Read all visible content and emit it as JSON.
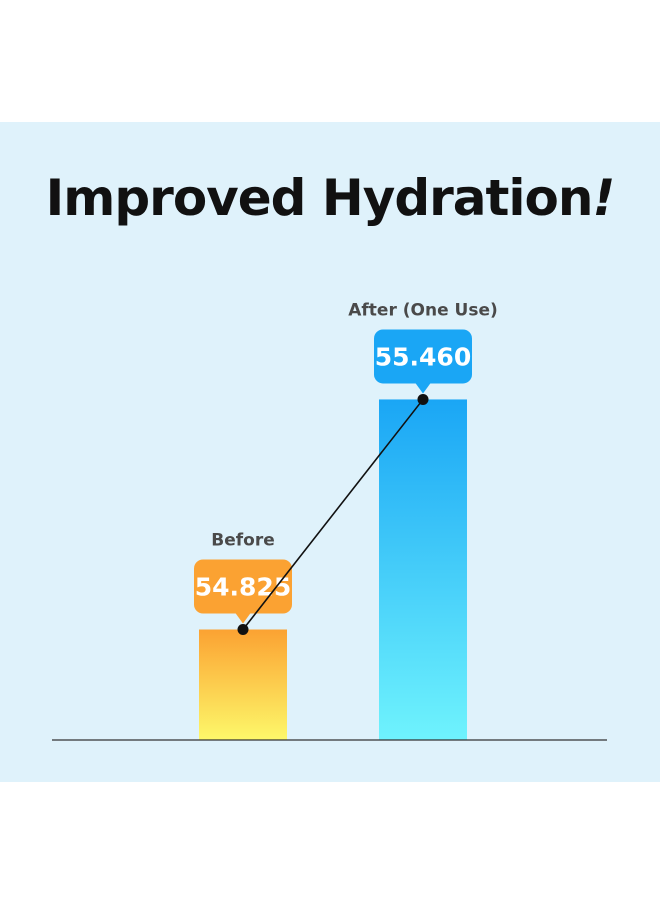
{
  "title": "Improved Hydration",
  "title_punct": "!",
  "colors": {
    "background": "#dff2fb",
    "before_top": "#fba232",
    "before_bottom": "#fdf86a",
    "after_top": "#1aa6f5",
    "after_bottom": "#6ff3fd",
    "before_badge": "#fba232",
    "after_badge": "#1aa6f5",
    "category_text": "#4a4a4a",
    "axis": "#333333"
  },
  "chart_data": {
    "type": "bar",
    "title": "Improved Hydration!",
    "categories": [
      "Before",
      "After (One Use)"
    ],
    "values": [
      54.825,
      55.46
    ],
    "value_labels": [
      "54.825",
      "55.460"
    ],
    "xlabel": "",
    "ylabel": "",
    "ylim": [
      54.52,
      55.74
    ],
    "connector_line": true,
    "grid": false,
    "legend": "none"
  }
}
